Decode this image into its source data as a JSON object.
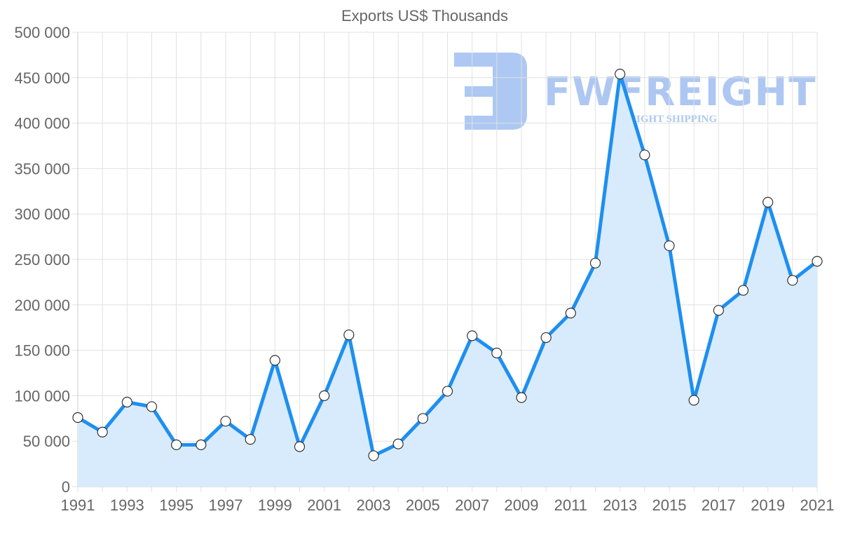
{
  "chart_data": {
    "type": "area",
    "title": "Exports US$ Thousands",
    "xlabel": "",
    "ylabel": "",
    "ylim": [
      0,
      500000
    ],
    "y_ticks": [
      "0",
      "50 000",
      "100 000",
      "150 000",
      "200 000",
      "250 000",
      "300 000",
      "350 000",
      "400 000",
      "450 000",
      "500 000"
    ],
    "x_tick_labels": [
      "1991",
      "1993",
      "1995",
      "1997",
      "1999",
      "2001",
      "2003",
      "2005",
      "2007",
      "2009",
      "2011",
      "2013",
      "2015",
      "2017",
      "2019",
      "2021"
    ],
    "grid": true,
    "legend": "none",
    "x": [
      1991,
      1992,
      1993,
      1994,
      1995,
      1996,
      1997,
      1998,
      1999,
      2000,
      2001,
      2002,
      2003,
      2004,
      2005,
      2006,
      2007,
      2008,
      2009,
      2010,
      2011,
      2012,
      2013,
      2014,
      2015,
      2016,
      2017,
      2018,
      2019,
      2020,
      2021
    ],
    "series": [
      {
        "name": "Exports US$ Thousands",
        "values": [
          76000,
          60000,
          93000,
          88000,
          46000,
          46000,
          72000,
          52000,
          139000,
          44000,
          100000,
          167000,
          34000,
          47000,
          75000,
          105000,
          166000,
          147000,
          98000,
          164000,
          191000,
          246000,
          454000,
          365000,
          265000,
          95000,
          194000,
          216000,
          313000,
          227000,
          248000
        ]
      }
    ],
    "colors": {
      "line": "#1e8ff0",
      "fill": "#d8ebfc",
      "marker_fill": "#ffffff",
      "marker_stroke": "#333333",
      "grid": "#e1e1e1",
      "text": "#666666"
    }
  },
  "watermark": {
    "brand": "FWFREIGHT",
    "tagline": "FREIGHT SHIPPING",
    "color": "#a9c5f2"
  }
}
